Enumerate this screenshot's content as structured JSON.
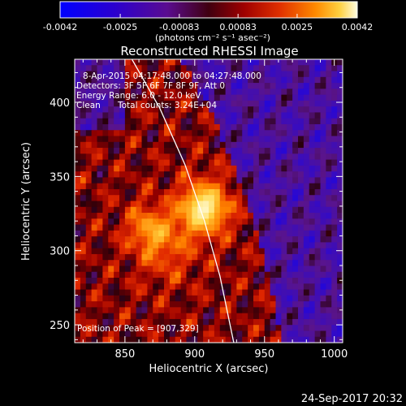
{
  "colors": {
    "background": "#000000",
    "foreground": "#ffffff",
    "colormap": [
      "#0000ff",
      "#3a00c8",
      "#6c10a8",
      "#3a0000",
      "#8a0000",
      "#d01000",
      "#ff5a00",
      "#ffb400",
      "#fff060",
      "#ffffff"
    ],
    "limb_line": "#ffffff"
  },
  "colorbar": {
    "ticks": [
      "-0.0042",
      "-0.0025",
      "-0.00083",
      "0.00083",
      "0.0025",
      "0.0042"
    ],
    "unit_label": "(photons cm⁻² s⁻¹ asec⁻²)",
    "range": [
      -0.0042,
      0.0042
    ]
  },
  "info": {
    "time_range": "8-Apr-2015 04:17:48.000 to 04:27:48.000",
    "detectors": "Detectors: 3F 5F 6F 7F 8F 9F, Att 0",
    "energy": "Energy Range: 6.0 - 12.0 keV",
    "method": "Clean",
    "total_counts": "Total counts: 3.24E+04",
    "peak": "Position of Peak = [907,329]"
  },
  "footer": {
    "date": "24-Sep-2017 20:32"
  },
  "chart_data": {
    "type": "heatmap",
    "title": "Reconstructed RHESSI Image",
    "xlabel": "Heliocentric X (arcsec)",
    "ylabel": "Heliocentric Y (arcsec)",
    "xlim": [
      814,
      1006
    ],
    "ylim": [
      238,
      429
    ],
    "xticks": [
      850,
      900,
      950,
      1000
    ],
    "yticks": [
      250,
      300,
      350,
      400
    ],
    "x_tick_labels": [
      "850",
      "900",
      "950",
      "1000"
    ],
    "y_tick_labels": [
      "250",
      "300",
      "350",
      "400"
    ],
    "peak": {
      "x": 907,
      "y": 329
    },
    "sources": [
      {
        "x": 907,
        "y": 329,
        "intensity": 1.0,
        "sigma": 14
      },
      {
        "x": 866,
        "y": 316,
        "intensity": 0.55,
        "sigma": 12
      },
      {
        "x": 880,
        "y": 298,
        "intensity": 0.4,
        "sigma": 16
      }
    ],
    "limb": [
      {
        "x": 855,
        "y": 429
      },
      {
        "x": 875,
        "y": 396
      },
      {
        "x": 893,
        "y": 358
      },
      {
        "x": 907,
        "y": 320
      },
      {
        "x": 918,
        "y": 283
      },
      {
        "x": 928,
        "y": 238
      }
    ],
    "grid": false,
    "legend": "none"
  }
}
